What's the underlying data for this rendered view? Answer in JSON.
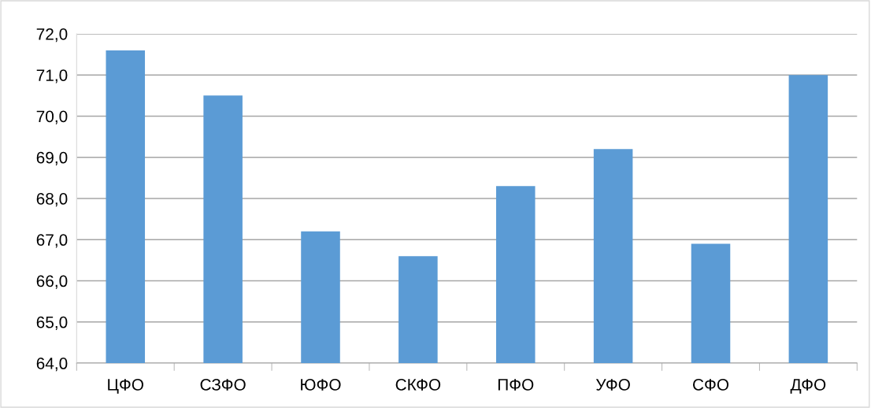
{
  "chart_data": {
    "type": "bar",
    "categories": [
      "ЦФО",
      "СЗФО",
      "ЮФО",
      "СКФО",
      "ПФО",
      "УФО",
      "СФО",
      "ДФО"
    ],
    "values": [
      71.6,
      70.5,
      67.2,
      66.6,
      68.3,
      69.2,
      66.9,
      71.0
    ],
    "color": "#5b9bd5",
    "ylim": [
      64,
      72
    ],
    "yticks": [
      {
        "value": 64,
        "label": "64,0"
      },
      {
        "value": 65,
        "label": "65,0"
      },
      {
        "value": 66,
        "label": "66,0"
      },
      {
        "value": 67,
        "label": "67,0"
      },
      {
        "value": 68,
        "label": "68,0"
      },
      {
        "value": 69,
        "label": "69,0"
      },
      {
        "value": 70,
        "label": "70,0"
      },
      {
        "value": 71,
        "label": "71,0"
      },
      {
        "value": 72,
        "label": "72,0"
      }
    ],
    "grid": "y"
  }
}
